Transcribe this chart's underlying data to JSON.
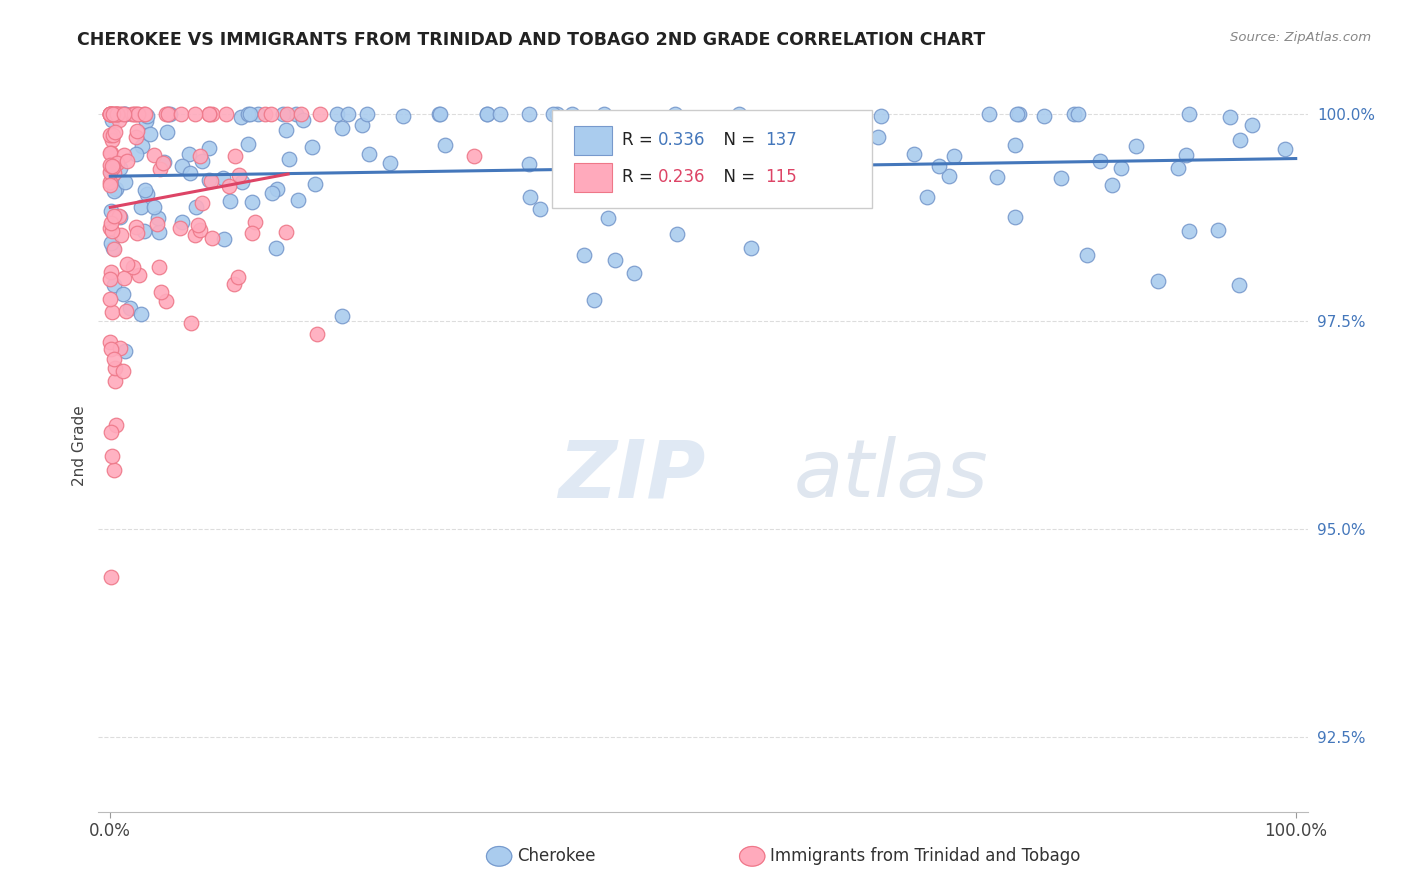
{
  "title": "CHEROKEE VS IMMIGRANTS FROM TRINIDAD AND TOBAGO 2ND GRADE CORRELATION CHART",
  "source": "Source: ZipAtlas.com",
  "ylabel": "2nd Grade",
  "ytick_labels": [
    "92.5%",
    "95.0%",
    "97.5%",
    "100.0%"
  ],
  "ytick_values": [
    0.925,
    0.95,
    0.975,
    1.0
  ],
  "ymin": 0.916,
  "ymax": 1.004,
  "xmin": -0.01,
  "xmax": 1.01,
  "blue_R": 0.336,
  "blue_N": 137,
  "pink_R": 0.236,
  "pink_N": 115,
  "blue_color": "#aaccee",
  "blue_edge": "#7799cc",
  "pink_color": "#ffaabc",
  "pink_edge": "#ee7788",
  "blue_line_color": "#4477bb",
  "pink_line_color": "#dd4466",
  "legend_label_blue": "Cherokee",
  "legend_label_pink": "Immigrants from Trinidad and Tobago",
  "background_color": "#ffffff",
  "ytick_color": "#4477bb",
  "watermark_zip": "ZIP",
  "watermark_atlas": "atlas",
  "blue_seed": 42,
  "pink_seed": 99
}
